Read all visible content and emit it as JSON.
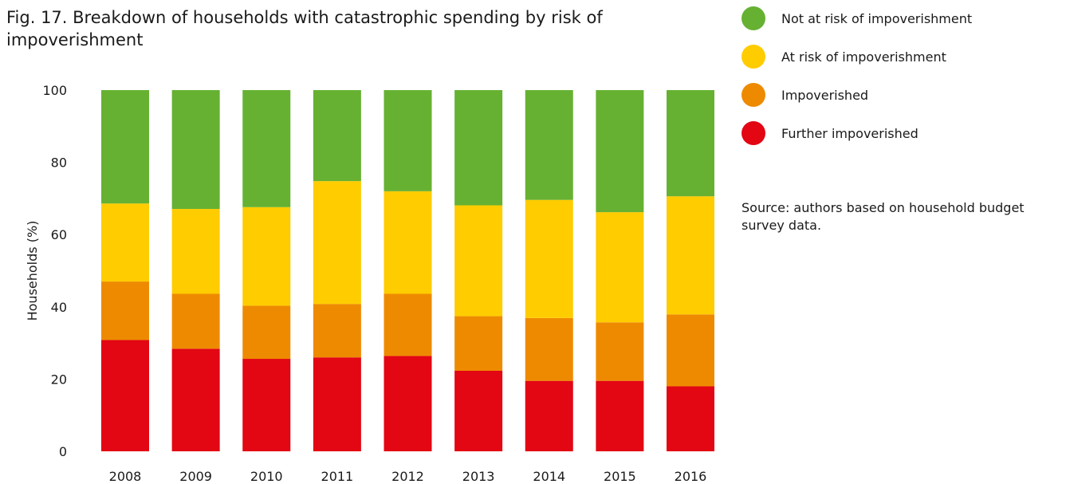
{
  "figure": {
    "title": "Fig. 17. Breakdown of households with catastrophic spending by risk of impoverishment",
    "source": "Source: authors based on household budget survey data."
  },
  "chart_data": {
    "type": "bar",
    "stacked": true,
    "title": "Fig. 17. Breakdown of households with catastrophic spending by risk of impoverishment",
    "xlabel": "",
    "ylabel": "Households (%)",
    "ylim": [
      0,
      100
    ],
    "yticks": [
      0,
      20,
      40,
      60,
      80,
      100
    ],
    "grid": false,
    "legend_position": "right",
    "categories": [
      "2008",
      "2009",
      "2010",
      "2011",
      "2012",
      "2013",
      "2014",
      "2015",
      "2016"
    ],
    "series": [
      {
        "name": "Further impoverished",
        "color": "#e30613",
        "values": [
          30.8,
          28.4,
          25.6,
          26.0,
          26.4,
          22.3,
          19.5,
          19.5,
          18.0
        ]
      },
      {
        "name": "Impoverished",
        "color": "#ee8a00",
        "values": [
          16.2,
          15.2,
          14.7,
          14.8,
          17.2,
          15.1,
          17.4,
          16.2,
          19.9
        ]
      },
      {
        "name": "At risk of impoverishment",
        "color": "#ffcc00",
        "values": [
          21.6,
          23.5,
          27.3,
          34.0,
          28.4,
          30.7,
          32.7,
          30.5,
          32.7
        ]
      },
      {
        "name": "Not at risk of impoverishment",
        "color": "#66b132",
        "values": [
          31.4,
          32.9,
          32.4,
          25.2,
          28.0,
          31.9,
          30.4,
          33.8,
          29.4
        ]
      }
    ],
    "legend_order": [
      "Not at risk of impoverishment",
      "At risk of impoverishment",
      "Impoverished",
      "Further impoverished"
    ]
  }
}
